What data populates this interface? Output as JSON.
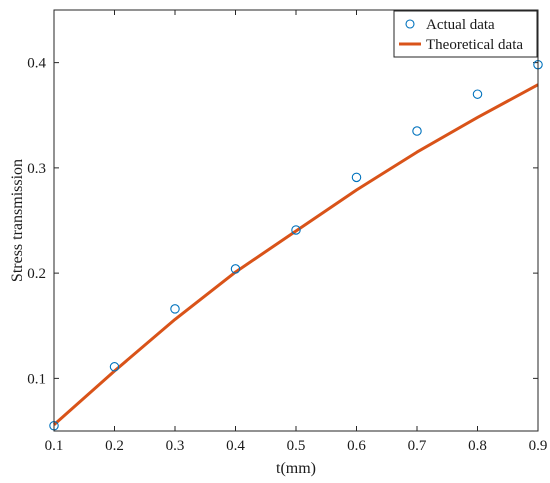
{
  "chart_data": {
    "type": "line",
    "title": "",
    "xlabel": "t(mm)",
    "ylabel": "Stress transmission",
    "xlim": [
      0.1,
      0.9
    ],
    "ylim": [
      0.05,
      0.45
    ],
    "xticks": [
      0.1,
      0.2,
      0.3,
      0.4,
      0.5,
      0.6,
      0.7,
      0.8,
      0.9
    ],
    "xtick_labels": [
      "0.1",
      "0.2",
      "0.3",
      "0.4",
      "0.5",
      "0.6",
      "0.7",
      "0.8",
      "0.9"
    ],
    "yticks": [
      0.1,
      0.2,
      0.3,
      0.4
    ],
    "ytick_labels": [
      "0.1",
      "0.2",
      "0.3",
      "0.4"
    ],
    "grid": false,
    "legend_position": "top-right",
    "series": [
      {
        "name": "Actual data",
        "kind": "scatter",
        "marker": "open-circle",
        "color": "#0072BD",
        "x": [
          0.1,
          0.2,
          0.3,
          0.4,
          0.5,
          0.6,
          0.7,
          0.8,
          0.9
        ],
        "y": [
          0.055,
          0.111,
          0.166,
          0.204,
          0.241,
          0.291,
          0.335,
          0.37,
          0.398
        ]
      },
      {
        "name": "Theoretical data",
        "kind": "line",
        "color": "#D95319",
        "x": [
          0.1,
          0.2,
          0.3,
          0.4,
          0.5,
          0.6,
          0.7,
          0.8,
          0.9
        ],
        "y": [
          0.056,
          0.107,
          0.156,
          0.201,
          0.24,
          0.279,
          0.315,
          0.348,
          0.379
        ]
      }
    ]
  }
}
